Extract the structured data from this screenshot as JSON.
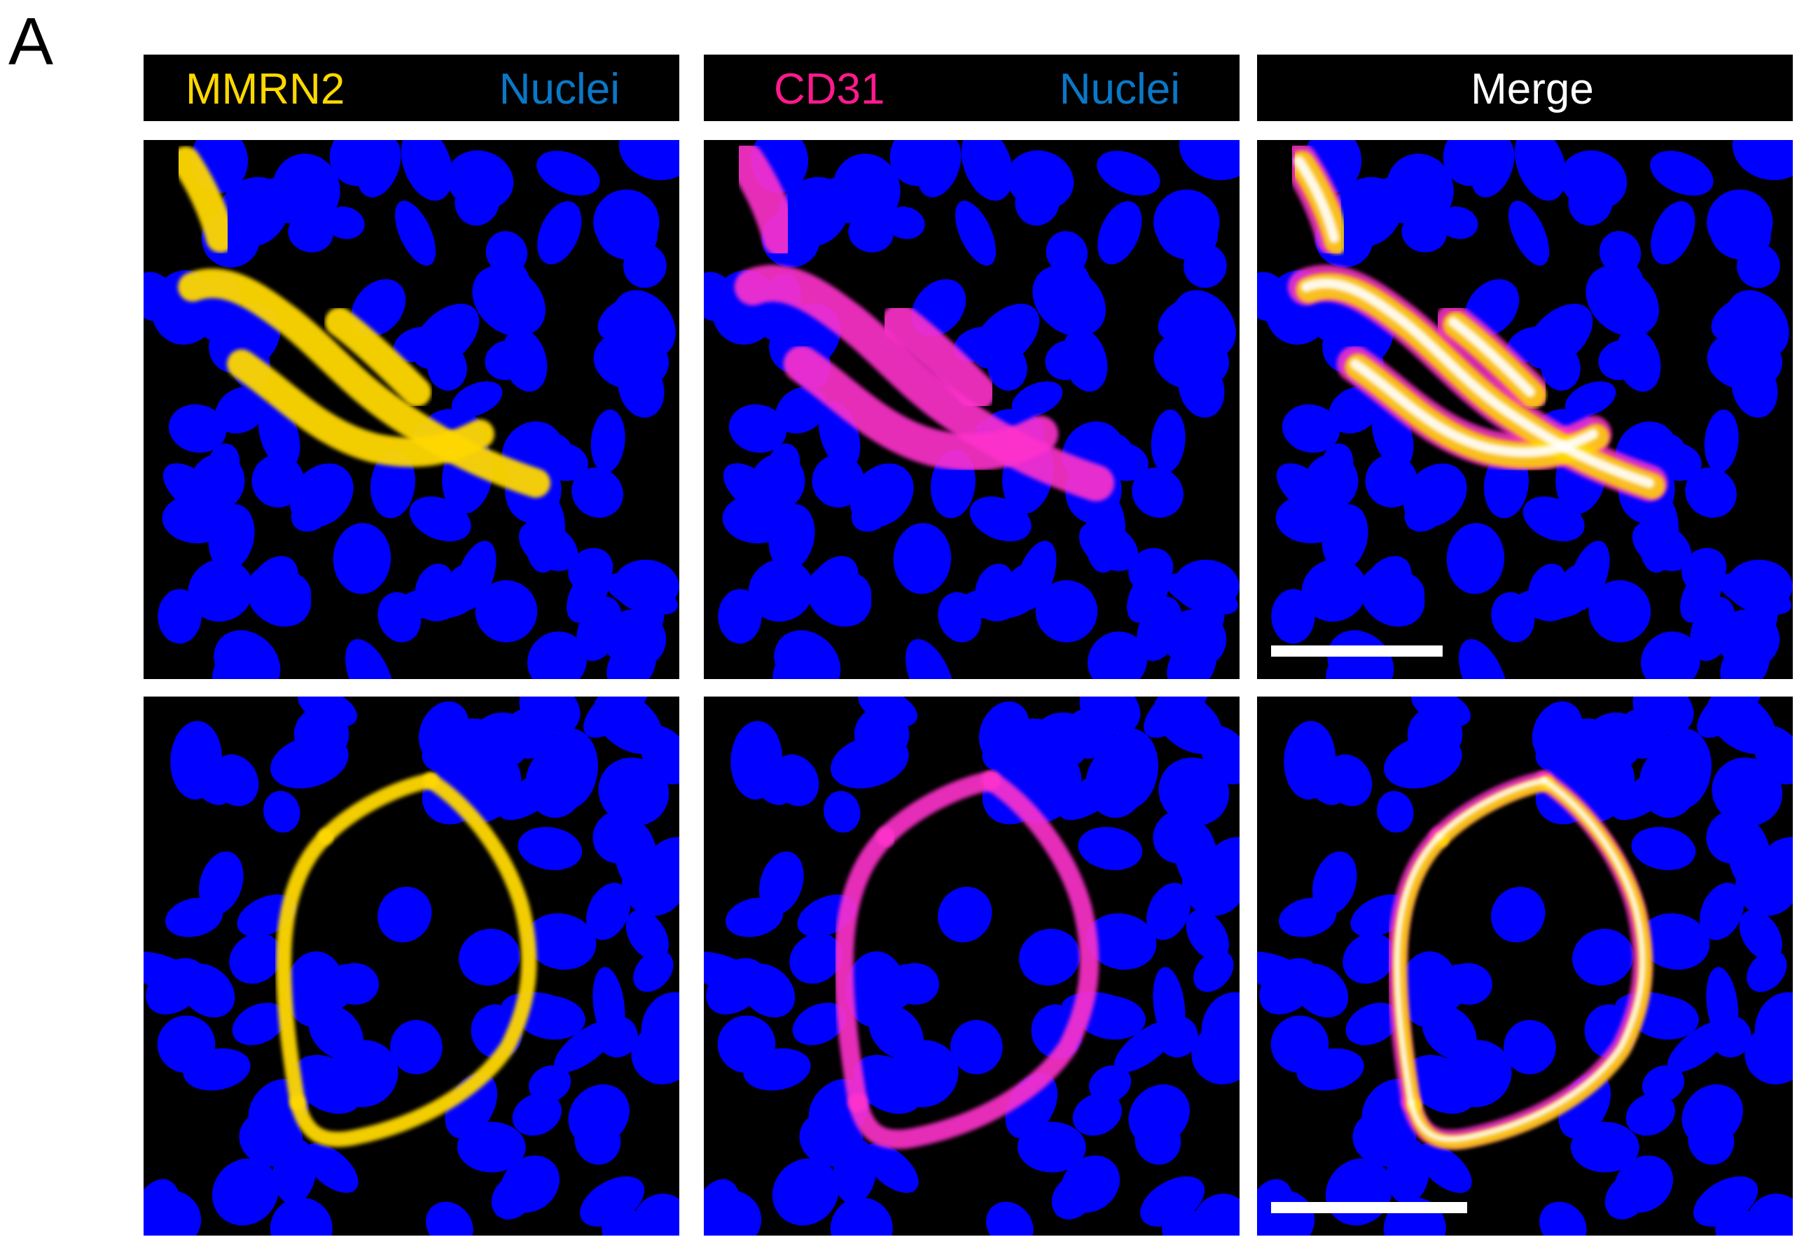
{
  "figure": {
    "panel_letter": "A",
    "colors": {
      "mmrn2": "#ffd800",
      "cd31": "#ff1a8c",
      "nuclei": "#0a78c8",
      "merge": "#ffffff",
      "nucleus_fill": "#0000ff"
    },
    "headers": [
      {
        "name": "header-mmrn2",
        "marker": "MMRN2",
        "counter": "Nuclei"
      },
      {
        "name": "header-cd31",
        "marker": "CD31",
        "counter": "Nuclei"
      },
      {
        "name": "header-merge",
        "marker": "Merge"
      }
    ],
    "rows": [
      {
        "name": "row-top",
        "channels": [
          "mmrn2",
          "cd31",
          "merge"
        ],
        "has_scale_bar": [
          false,
          false,
          true
        ]
      },
      {
        "name": "row-bottom",
        "channels": [
          "mmrn2",
          "cd31",
          "merge"
        ],
        "has_scale_bar": [
          false,
          false,
          true
        ]
      }
    ]
  }
}
